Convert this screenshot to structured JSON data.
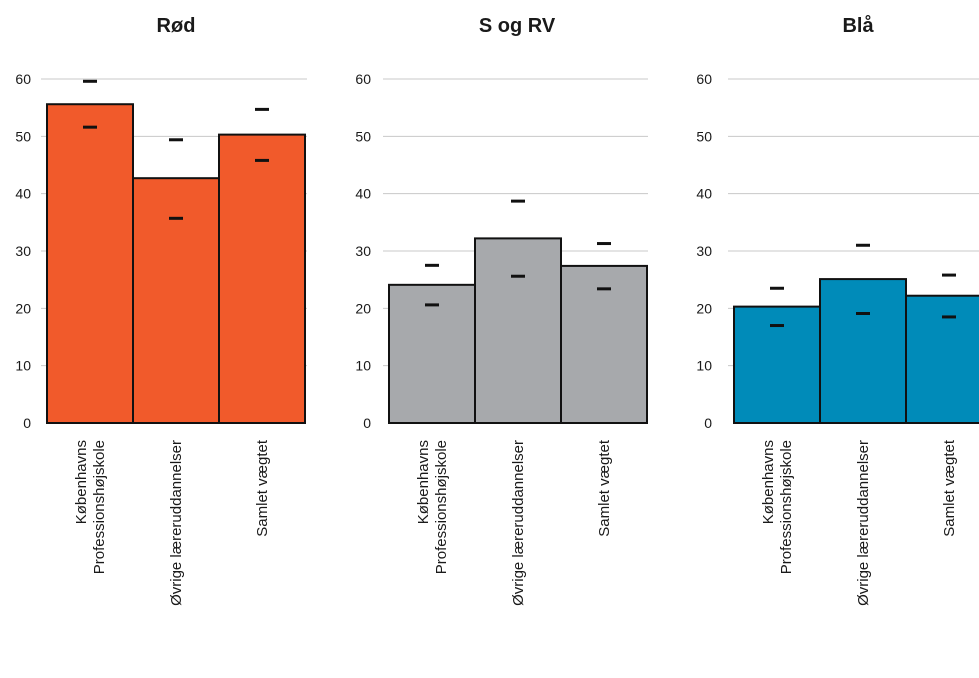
{
  "chart_data": [
    {
      "type": "bar",
      "title": "Rød",
      "color": "#F15A2B",
      "categories": [
        "Københavns Professionshøjskole",
        "Øvrige læreruddannelser",
        "Samlet vægtet"
      ],
      "category_lines": [
        [
          "Københavns",
          "Professionshøjskole"
        ],
        [
          "Øvrige læreruddannelser"
        ],
        [
          "Samlet vægtet"
        ]
      ],
      "values": [
        55.6,
        42.7,
        50.3
      ],
      "ci_upper": [
        59.6,
        49.4,
        54.7
      ],
      "ci_lower": [
        51.6,
        35.7,
        45.8
      ],
      "ylim": [
        0,
        60
      ],
      "yticks": [
        0,
        10,
        20,
        30,
        40,
        50,
        60
      ],
      "grid": true,
      "xlabel": "",
      "ylabel": ""
    },
    {
      "type": "bar",
      "title": "S og RV",
      "color": "#A7A9AC",
      "categories": [
        "Københavns Professionshøjskole",
        "Øvrige læreruddannelser",
        "Samlet vægtet"
      ],
      "category_lines": [
        [
          "Københavns",
          "Professionshøjskole"
        ],
        [
          "Øvrige læreruddannelser"
        ],
        [
          "Samlet vægtet"
        ]
      ],
      "values": [
        24.1,
        32.2,
        27.4
      ],
      "ci_upper": [
        27.5,
        38.7,
        31.3
      ],
      "ci_lower": [
        20.6,
        25.6,
        23.4
      ],
      "ylim": [
        0,
        60
      ],
      "yticks": [
        0,
        10,
        20,
        30,
        40,
        50,
        60
      ],
      "grid": true,
      "xlabel": "",
      "ylabel": ""
    },
    {
      "type": "bar",
      "title": "Blå",
      "color": "#008BB9",
      "categories": [
        "Københavns Professionshøjskole",
        "Øvrige læreruddannelser",
        "Samlet vægtet"
      ],
      "category_lines": [
        [
          "Københavns",
          "Professionshøjskole"
        ],
        [
          "Øvrige læreruddannelser"
        ],
        [
          "Samlet vægtet"
        ]
      ],
      "values": [
        20.3,
        25.1,
        22.2
      ],
      "ci_upper": [
        23.5,
        31.0,
        25.8
      ],
      "ci_lower": [
        17.0,
        19.1,
        18.5
      ],
      "ylim": [
        0,
        60
      ],
      "yticks": [
        0,
        10,
        20,
        30,
        40,
        50,
        60
      ],
      "grid": true,
      "xlabel": "",
      "ylabel": ""
    }
  ]
}
